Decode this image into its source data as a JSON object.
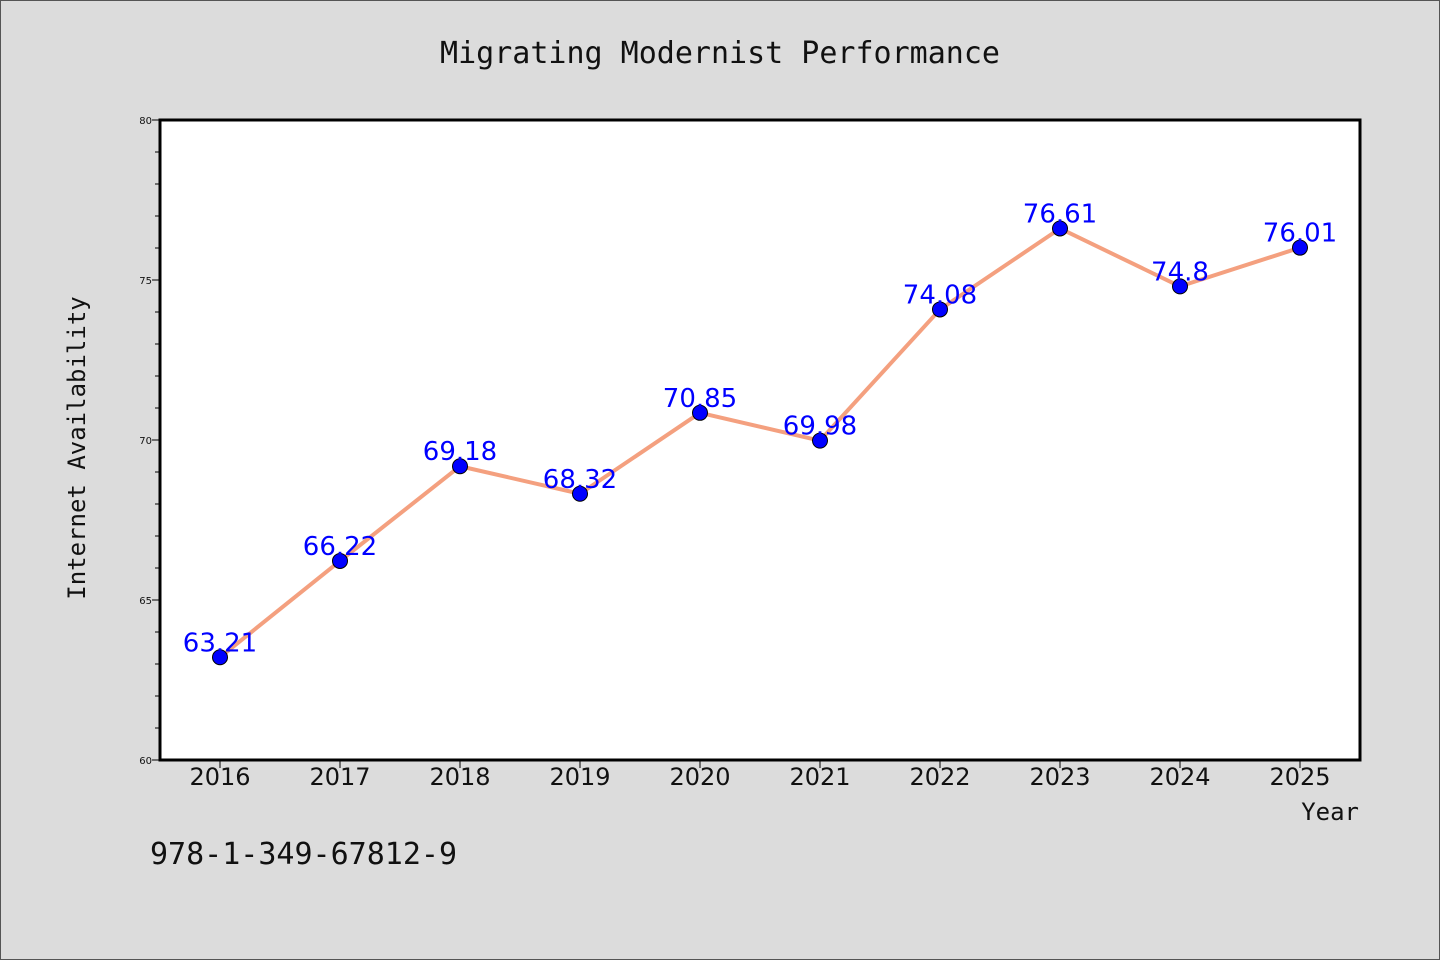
{
  "chart_data": {
    "type": "line",
    "title": "Migrating Modernist Performance",
    "xlabel": "Year",
    "ylabel": "Internet Availability",
    "categories": [
      "2016",
      "2017",
      "2018",
      "2019",
      "2020",
      "2021",
      "2022",
      "2023",
      "2024",
      "2025"
    ],
    "series": [
      {
        "values": [
          63.21,
          66.22,
          69.18,
          68.32,
          70.85,
          69.98,
          74.08,
          76.61,
          74.8,
          76.01
        ],
        "labels": [
          "63.21",
          "66.22",
          "69.18",
          "68.32",
          "70.85",
          "69.98",
          "74.08",
          "76.61",
          "74.8",
          "76.01"
        ],
        "line_color": "#f4a07f",
        "marker_color": "#0000ff"
      }
    ],
    "ylim": [
      60,
      80
    ],
    "yticks": [
      "60",
      "65",
      "70",
      "75",
      "80"
    ],
    "grid": false,
    "legend": "none"
  },
  "footer_text": "978-1-349-67812-9",
  "colors": {
    "background": "#dcdcdc",
    "plot_background": "#ffffff",
    "label_color": "#0000ff"
  }
}
